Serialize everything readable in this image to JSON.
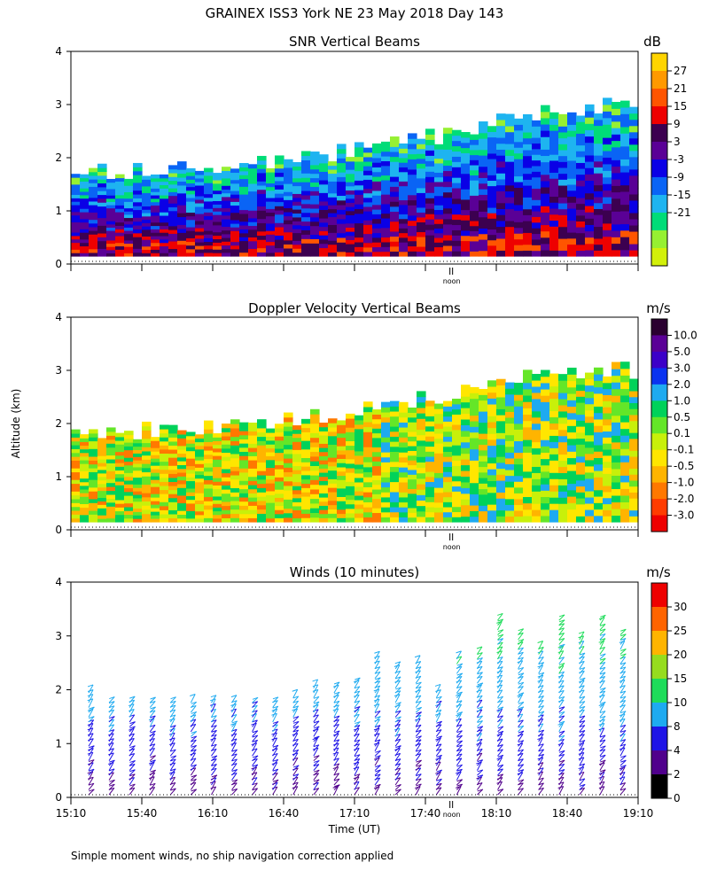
{
  "figure_title": "GRAINEX ISS3 York NE  23 May 2018 Day 143",
  "y_axis_label": "Altitude (km)",
  "x_axis_label": "Time (UT)",
  "footnote": "Simple moment winds, no ship navigation correction applied",
  "noon_label": "noon",
  "chart_data": [
    {
      "type": "heatmap",
      "title": "SNR Vertical Beams",
      "unit": "dB",
      "ylabel": "Altitude (km)",
      "ylim": [
        0,
        4
      ],
      "yticks": [
        "0",
        "1",
        "2",
        "3",
        "4"
      ],
      "xlim": [
        "15:10",
        "19:10"
      ],
      "colorbar": {
        "labels": [
          "27",
          "21",
          "15",
          "9",
          "3",
          "-3",
          "-9",
          "-15",
          "-21"
        ],
        "colors": [
          "#ffd400",
          "#ff9900",
          "#ff5500",
          "#ee0000",
          "#3c0050",
          "#5a0096",
          "#0a00e6",
          "#0a64f5",
          "#1eb4f0",
          "#00dc78",
          "#96f032",
          "#d2f00a"
        ]
      },
      "layer_tops_km": [
        1.7,
        1.8,
        2.0,
        2.3,
        2.8,
        3.0
      ]
    },
    {
      "type": "heatmap",
      "title": "Doppler Velocity Vertical Beams",
      "unit": "m/s",
      "ylabel": "Altitude (km)",
      "ylim": [
        0,
        4
      ],
      "yticks": [
        "0",
        "1",
        "2",
        "3",
        "4"
      ],
      "xlim": [
        "15:10",
        "19:10"
      ],
      "colorbar": {
        "labels": [
          "10.0",
          "5.0",
          "3.0",
          "2.0",
          "1.0",
          "0.5",
          "0.1",
          "-0.1",
          "-0.5",
          "-1.0",
          "-2.0",
          "-3.0"
        ],
        "colors": [
          "#2a0030",
          "#5a0096",
          "#3c00c8",
          "#0a32f0",
          "#1eaaf0",
          "#00d25a",
          "#64e628",
          "#c8f00a",
          "#ffe600",
          "#ffb400",
          "#ff7800",
          "#ff3c00",
          "#ee0000"
        ]
      },
      "layer_tops_km": [
        1.8,
        1.9,
        2.1,
        2.4,
        2.9,
        3.0
      ]
    },
    {
      "type": "wind_barbs",
      "title": "Winds (10 minutes)",
      "unit": "m/s",
      "ylabel": "Altitude (km)",
      "xlabel": "Time (UT)",
      "ylim": [
        0,
        4
      ],
      "yticks": [
        "0",
        "1",
        "2",
        "3",
        "4"
      ],
      "xticks": [
        "15:10",
        "15:40",
        "16:10",
        "16:40",
        "17:10",
        "17:40",
        "18:10",
        "18:40",
        "19:10"
      ],
      "colorbar": {
        "labels": [
          "30",
          "25",
          "20",
          "15",
          "10",
          "8",
          "4",
          "2",
          "0"
        ],
        "colors": [
          "#ee0000",
          "#ff6400",
          "#ffb400",
          "#96dc1e",
          "#1edc5a",
          "#1eaaf0",
          "#1e14e6",
          "#50008c",
          "#000000"
        ]
      },
      "profile_tops_km": [
        2.0,
        1.8,
        1.8,
        1.8,
        1.8,
        1.8,
        1.8,
        1.8,
        1.8,
        1.8,
        1.9,
        2.1,
        2.1,
        2.2,
        2.6,
        2.4,
        2.5,
        2.0,
        2.6,
        2.7,
        3.3,
        3.1,
        2.8,
        3.3,
        3.0,
        3.3,
        3.1
      ]
    }
  ]
}
